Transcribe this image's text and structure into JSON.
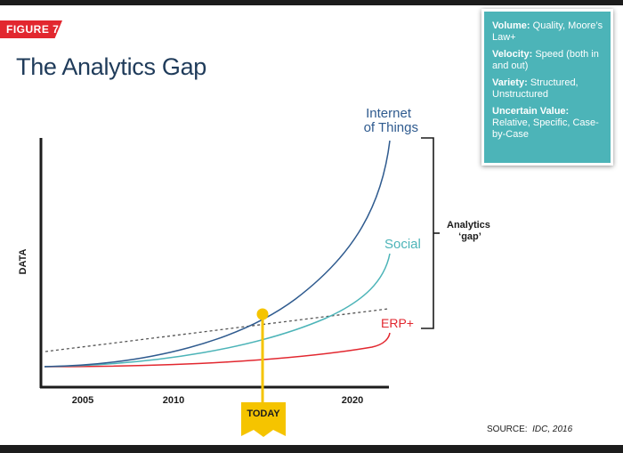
{
  "figure_label": "FIGURE 7",
  "title": "The Analytics Gap",
  "infobox": [
    {
      "label": "Volume:",
      "text": "Quality, Moore’s Law+"
    },
    {
      "label": "Velocity:",
      "text": "Speed (both in and out)"
    },
    {
      "label": "Variety:",
      "text": "Structured, Unstructured"
    },
    {
      "label": "Uncertain Value:",
      "text": "Relative, Specific, Case-by-Case"
    }
  ],
  "source": {
    "label": "SOURCE:",
    "text": "IDC, 2016"
  },
  "colors": {
    "iot": "#2f5b8f",
    "social": "#4cb4b8",
    "erp": "#e2272f",
    "marker": "#f5c400",
    "title": "#1f3b5a"
  },
  "chart_data": {
    "type": "line",
    "ylabel": "DATA",
    "xlabel": "",
    "x_ticks": [
      "2005",
      "2010",
      "2020"
    ],
    "series": [
      {
        "name": "Internet of Things",
        "color": "#2f5b8f"
      },
      {
        "name": "Social",
        "color": "#4cb4b8"
      },
      {
        "name": "ERP+",
        "color": "#e2272f"
      },
      {
        "name": "",
        "style": "dashed"
      }
    ],
    "annotations": {
      "gap_label": "Analytics ‘gap’",
      "marker_label": "TODAY"
    },
    "grid": false
  }
}
